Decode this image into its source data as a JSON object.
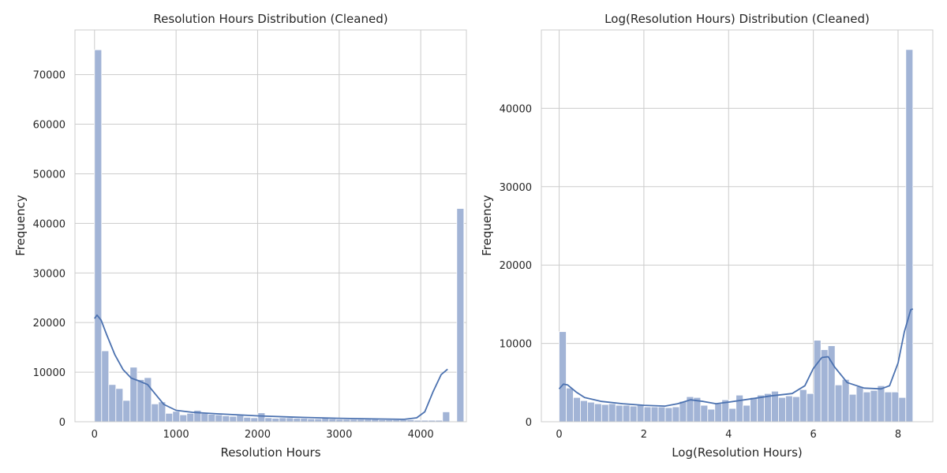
{
  "colors": {
    "bar_fill": "#a2b4d6",
    "bar_stroke": "#ffffff",
    "kde_line": "#4c72b0",
    "grid": "#cccccc",
    "spine": "#cccccc",
    "text": "#262626"
  },
  "chart_data": [
    {
      "type": "histogram",
      "title": "Resolution Hours Distribution (Cleaned)",
      "xlabel": "Resolution Hours",
      "ylabel": "Frequency",
      "xlim": [
        -240,
        4560
      ],
      "ylim": [
        0,
        79000
      ],
      "x_ticks": [
        0,
        1000,
        2000,
        3000,
        4000
      ],
      "y_ticks": [
        0,
        10000,
        20000,
        30000,
        40000,
        50000,
        60000,
        70000
      ],
      "bin_start": 0,
      "bin_width": 87.1,
      "values": [
        75000,
        14300,
        7500,
        6700,
        4300,
        11000,
        8500,
        8900,
        3600,
        4000,
        1700,
        2100,
        1400,
        1700,
        2300,
        1700,
        1500,
        1400,
        1200,
        1100,
        1300,
        900,
        800,
        1800,
        800,
        700,
        800,
        800,
        700,
        700,
        600,
        600,
        700,
        600,
        500,
        500,
        500,
        500,
        500,
        500,
        400,
        400,
        400,
        400,
        400,
        300,
        300,
        300,
        300,
        2000,
        0,
        43000
      ],
      "kde": [
        [
          0,
          20800
        ],
        [
          30,
          21500
        ],
        [
          80,
          20500
        ],
        [
          150,
          17500
        ],
        [
          250,
          13500
        ],
        [
          350,
          10500
        ],
        [
          450,
          8800
        ],
        [
          550,
          8200
        ],
        [
          650,
          7500
        ],
        [
          750,
          5500
        ],
        [
          850,
          3500
        ],
        [
          1000,
          2300
        ],
        [
          1200,
          1900
        ],
        [
          1500,
          1600
        ],
        [
          2000,
          1200
        ],
        [
          2500,
          900
        ],
        [
          3000,
          700
        ],
        [
          3500,
          550
        ],
        [
          3800,
          500
        ],
        [
          3950,
          800
        ],
        [
          4050,
          2000
        ],
        [
          4150,
          6000
        ],
        [
          4250,
          9500
        ],
        [
          4330,
          10600
        ]
      ]
    },
    {
      "type": "histogram",
      "title": "Log(Resolution Hours) Distribution (Cleaned)",
      "xlabel": "Log(Resolution Hours)",
      "ylabel": "Frequency",
      "xlim": [
        -0.42,
        8.82
      ],
      "ylim": [
        0,
        50000
      ],
      "x_ticks": [
        0,
        2,
        4,
        6,
        8
      ],
      "y_ticks": [
        0,
        10000,
        20000,
        30000,
        40000
      ],
      "bin_start": 0,
      "bin_width": 0.167,
      "values": [
        11500,
        4300,
        3100,
        2700,
        2500,
        2300,
        2200,
        2300,
        2100,
        2100,
        2000,
        2100,
        1900,
        1900,
        1900,
        1800,
        1900,
        2600,
        3200,
        3100,
        2100,
        1600,
        2300,
        2800,
        1700,
        3400,
        2100,
        3100,
        3400,
        3600,
        3900,
        3100,
        3300,
        3200,
        4100,
        3600,
        10400,
        9200,
        9700,
        4700,
        5400,
        3500,
        4500,
        3800,
        4000,
        4600,
        3800,
        3800,
        3100,
        47500
      ],
      "kde": [
        [
          0,
          4200
        ],
        [
          0.1,
          4800
        ],
        [
          0.2,
          4700
        ],
        [
          0.4,
          3800
        ],
        [
          0.6,
          3100
        ],
        [
          1.0,
          2600
        ],
        [
          1.5,
          2300
        ],
        [
          2.0,
          2100
        ],
        [
          2.5,
          2000
        ],
        [
          2.8,
          2300
        ],
        [
          3.1,
          2800
        ],
        [
          3.4,
          2600
        ],
        [
          3.7,
          2300
        ],
        [
          4.0,
          2500
        ],
        [
          4.5,
          2900
        ],
        [
          5.0,
          3300
        ],
        [
          5.5,
          3600
        ],
        [
          5.8,
          4600
        ],
        [
          6.0,
          6800
        ],
        [
          6.2,
          8200
        ],
        [
          6.35,
          8300
        ],
        [
          6.5,
          7000
        ],
        [
          6.8,
          5000
        ],
        [
          7.2,
          4300
        ],
        [
          7.6,
          4200
        ],
        [
          7.8,
          4600
        ],
        [
          8.0,
          7500
        ],
        [
          8.15,
          11500
        ],
        [
          8.3,
          14300
        ],
        [
          8.35,
          14400
        ]
      ]
    }
  ]
}
